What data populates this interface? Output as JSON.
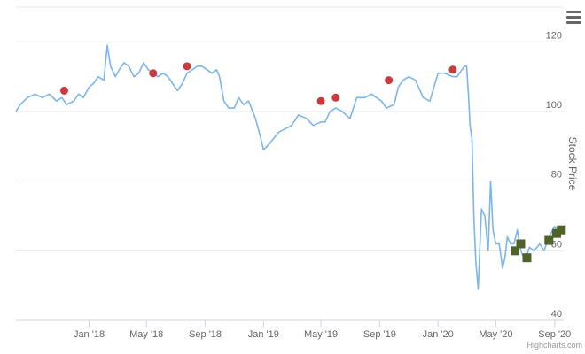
{
  "chart_data": {
    "type": "line",
    "ylabel": "Stock Price",
    "ylim": [
      40,
      130
    ],
    "yticks": [
      40,
      60,
      80,
      100,
      120
    ],
    "yaxis_side": "right",
    "xlim": [
      "2017-08-01",
      "2020-09-20"
    ],
    "xticks": [
      {
        "date": "2018-01-01",
        "label": "Jan '18"
      },
      {
        "date": "2018-05-01",
        "label": "May '18"
      },
      {
        "date": "2018-09-01",
        "label": "Sep '18"
      },
      {
        "date": "2019-01-01",
        "label": "Jan '19"
      },
      {
        "date": "2019-05-01",
        "label": "May '19"
      },
      {
        "date": "2019-09-01",
        "label": "Sep '19"
      },
      {
        "date": "2020-01-01",
        "label": "Jan '20"
      },
      {
        "date": "2020-05-01",
        "label": "May '20"
      },
      {
        "date": "2020-09-01",
        "label": "Sep '20"
      }
    ],
    "grid": true,
    "series": [
      {
        "type": "line",
        "color": "#7cb5ec",
        "x": [
          "2017-08-01",
          "2017-08-10",
          "2017-08-25",
          "2017-09-10",
          "2017-09-25",
          "2017-10-10",
          "2017-10-25",
          "2017-11-05",
          "2017-11-15",
          "2017-11-30",
          "2017-12-10",
          "2017-12-20",
          "2018-01-01",
          "2018-01-10",
          "2018-01-20",
          "2018-02-01",
          "2018-02-08",
          "2018-02-15",
          "2018-02-25",
          "2018-03-05",
          "2018-03-15",
          "2018-03-25",
          "2018-04-05",
          "2018-04-15",
          "2018-04-25",
          "2018-05-05",
          "2018-05-15",
          "2018-05-25",
          "2018-06-05",
          "2018-06-15",
          "2018-06-25",
          "2018-07-05",
          "2018-07-15",
          "2018-07-25",
          "2018-08-05",
          "2018-08-15",
          "2018-08-25",
          "2018-09-05",
          "2018-09-15",
          "2018-09-25",
          "2018-10-01",
          "2018-10-10",
          "2018-10-20",
          "2018-11-01",
          "2018-11-10",
          "2018-11-20",
          "2018-12-01",
          "2018-12-15",
          "2018-12-25",
          "2019-01-01",
          "2019-01-15",
          "2019-02-01",
          "2019-02-15",
          "2019-03-01",
          "2019-03-15",
          "2019-04-01",
          "2019-04-15",
          "2019-05-01",
          "2019-05-10",
          "2019-05-20",
          "2019-06-01",
          "2019-06-15",
          "2019-07-01",
          "2019-07-15",
          "2019-08-01",
          "2019-08-15",
          "2019-08-25",
          "2019-09-05",
          "2019-09-15",
          "2019-10-01",
          "2019-10-10",
          "2019-10-20",
          "2019-11-01",
          "2019-11-15",
          "2019-12-01",
          "2019-12-15",
          "2020-01-01",
          "2020-01-15",
          "2020-02-01",
          "2020-02-10",
          "2020-02-15",
          "2020-02-20",
          "2020-02-25",
          "2020-03-01",
          "2020-03-05",
          "2020-03-08",
          "2020-03-12",
          "2020-03-16",
          "2020-03-20",
          "2020-03-25",
          "2020-04-01",
          "2020-04-08",
          "2020-04-15",
          "2020-04-20",
          "2020-04-25",
          "2020-05-01",
          "2020-05-08",
          "2020-05-15",
          "2020-05-20",
          "2020-05-25",
          "2020-06-01",
          "2020-06-08",
          "2020-06-15",
          "2020-06-22",
          "2020-07-01",
          "2020-07-10",
          "2020-07-20",
          "2020-08-01",
          "2020-08-10",
          "2020-08-20",
          "2020-09-01",
          "2020-09-10",
          "2020-09-20"
        ],
        "y": [
          100,
          102,
          104,
          105,
          104,
          105,
          103,
          104,
          102,
          103,
          105,
          104,
          107,
          108,
          110,
          109,
          119,
          113,
          110,
          112,
          114,
          113,
          110,
          111,
          114,
          112,
          111,
          110,
          111,
          110,
          108,
          106,
          108,
          111,
          112,
          113,
          113,
          112,
          111,
          112,
          110,
          103,
          101,
          101,
          104,
          102,
          103,
          98,
          93,
          89,
          91,
          94,
          95,
          96,
          99,
          98,
          96,
          97,
          97,
          100,
          101,
          100,
          98,
          104,
          104,
          105,
          104,
          103,
          101,
          102,
          107,
          109,
          110,
          109,
          104,
          103,
          111,
          111,
          110,
          110,
          111,
          112,
          113,
          113,
          104,
          96,
          92,
          70,
          57,
          49,
          72,
          70,
          60,
          80,
          66,
          62,
          62,
          55,
          58,
          64,
          62,
          62,
          66,
          60,
          57,
          61,
          60,
          62,
          60,
          64,
          67,
          65,
          67
        ]
      }
    ],
    "markers": [
      {
        "shape": "circle",
        "color": "#c9393e",
        "points": [
          {
            "x": "2017-11-10",
            "y": 106
          },
          {
            "x": "2018-05-15",
            "y": 111
          },
          {
            "x": "2018-07-25",
            "y": 113
          },
          {
            "x": "2019-05-01",
            "y": 103
          },
          {
            "x": "2019-06-01",
            "y": 104
          },
          {
            "x": "2019-09-20",
            "y": 109
          },
          {
            "x": "2020-02-01",
            "y": 112
          }
        ]
      },
      {
        "shape": "square",
        "color": "#4f6228",
        "points": [
          {
            "x": "2020-06-10",
            "y": 60
          },
          {
            "x": "2020-06-22",
            "y": 62
          },
          {
            "x": "2020-07-05",
            "y": 58
          },
          {
            "x": "2020-08-20",
            "y": 63
          },
          {
            "x": "2020-09-05",
            "y": 65
          },
          {
            "x": "2020-09-15",
            "y": 66
          }
        ]
      }
    ]
  },
  "menu": {
    "icon": "hamburger-menu-icon"
  },
  "credits": {
    "text": "Highcharts.com"
  }
}
